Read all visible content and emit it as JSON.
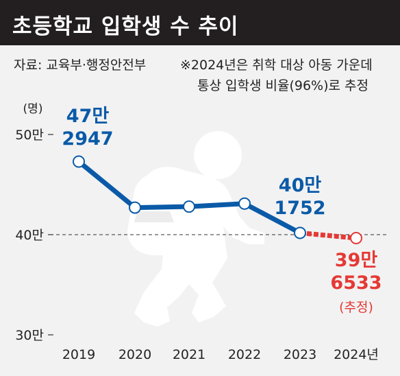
{
  "header": {
    "title": "초등학교 입학생 수 추이"
  },
  "source": {
    "label": "자료: 교육부·행정안전부",
    "note_line1": "※2024년은 취학 대상 아동 가운데",
    "note_line2": "통상 입학생 비율(96%)로 추정"
  },
  "colors": {
    "actual": "#0a5aa8",
    "estimate": "#e53935",
    "title_bg": "#231f20",
    "figure": "#ffffff"
  },
  "chart_data": {
    "type": "line",
    "unit_label": "(명)",
    "x": [
      "2019",
      "2020",
      "2021",
      "2022",
      "2023",
      "2024년"
    ],
    "ylim": [
      300000,
      500000
    ],
    "yticks": [
      {
        "value": 500000,
        "label": "50만"
      },
      {
        "value": 400000,
        "label": "40만"
      },
      {
        "value": 300000,
        "label": "30만"
      }
    ],
    "series": [
      {
        "values": [
          472947,
          427000,
          428000,
          431000,
          401752,
          396533
        ],
        "estimated_last": true
      }
    ],
    "annotations": [
      {
        "index": 0,
        "line1": "47만",
        "line2": "2947"
      },
      {
        "index": 4,
        "line1": "40만",
        "line2": "1752"
      },
      {
        "index": 5,
        "line1": "39만",
        "line2": "6533",
        "line3": "(추정)"
      }
    ],
    "reference_line": 400000,
    "grid": false
  }
}
